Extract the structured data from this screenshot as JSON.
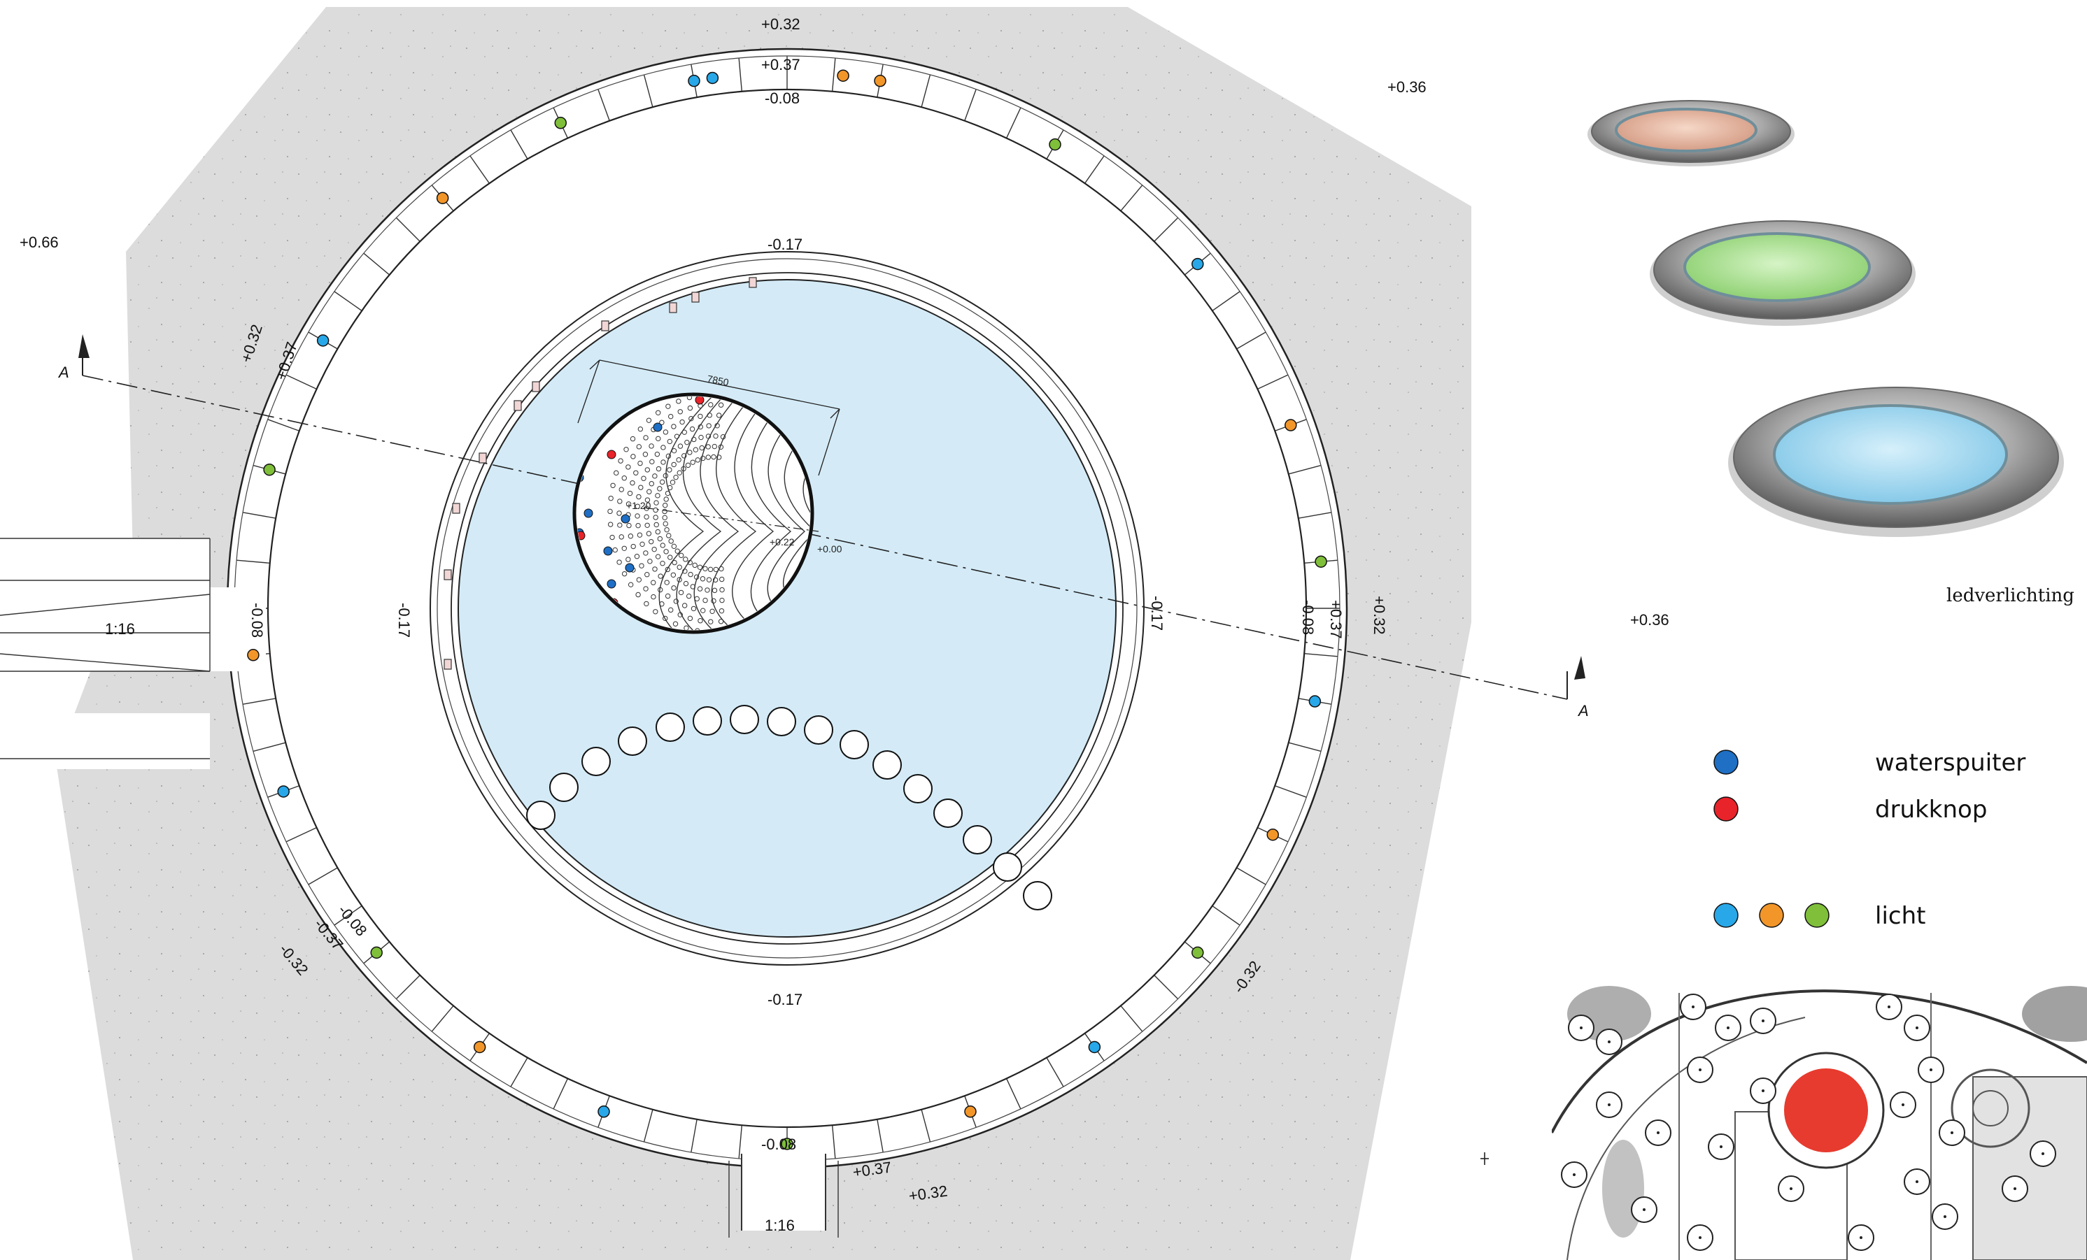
{
  "levels": {
    "top_outer": "+0.32",
    "top_inner": "+0.37",
    "top_path": "-0.08",
    "top_right": "+0.36",
    "left": "+0.66",
    "left_outer": "+0.32",
    "left_inner": "+0.37",
    "left_path": "-0.08",
    "left_bench": "-0.17",
    "bench_top": "-0.17",
    "bench_bottom": "-0.17",
    "bench_right": "-0.17",
    "right_path": "-0.08",
    "right_inner": "+0.37",
    "right_outer": "+0.32",
    "sw_path": "-0.08",
    "sw_inner": "-0.37",
    "sw_outer": "-0.32",
    "se_outer": "-0.32",
    "bottom_path": "-0.08",
    "bottom_inner": "+0.37",
    "bottom_outer": "+0.32",
    "side_right": "+0.36",
    "dome_top": "+1.20",
    "dome_mid": "+0.22",
    "dome_edge": "+0.00"
  },
  "slopes": {
    "left": "1:16",
    "bottom": "1:16"
  },
  "dimension": "7850",
  "section_marker": "A",
  "caption": "ledverlichting",
  "legend": {
    "waterspuiter": "waterspuiter",
    "drukknop": "drukknop",
    "licht": "licht"
  },
  "colors": {
    "water": "#d4ebf7",
    "paving": "#dcdcdc",
    "spray": "#1f6fc4",
    "button": "#e8232a",
    "light_blue": "#28a8e8",
    "light_orange": "#f2962a",
    "light_green": "#7fbf3a",
    "map_highlight": "#e63b2e"
  }
}
